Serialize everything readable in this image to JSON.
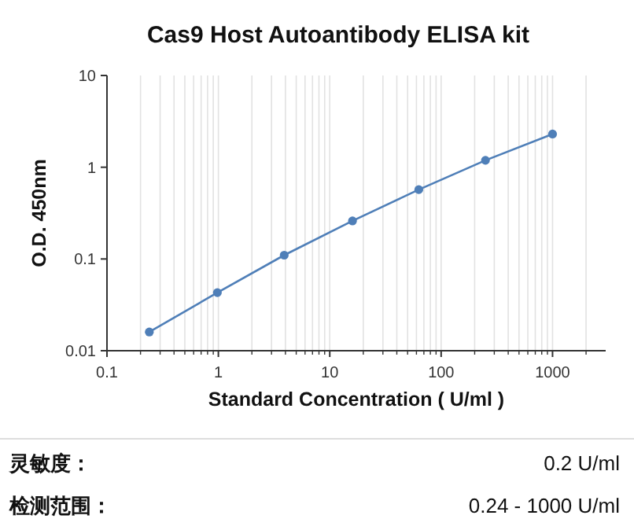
{
  "chart_data": {
    "type": "line",
    "title": "Cas9 Host Autoantibody ELISA kit",
    "xlabel": "Standard Concentration ( U/ml )",
    "ylabel": "O.D. 450nm",
    "x": [
      0.24,
      0.98,
      3.9,
      16,
      63,
      250,
      1000
    ],
    "series": [
      {
        "color": "#4f7fb8",
        "values": [
          0.016,
          0.043,
          0.11,
          0.26,
          0.57,
          1.19,
          2.3
        ]
      }
    ],
    "log": "xy",
    "xlim": [
      0.1,
      3000
    ],
    "ylim": [
      0.01,
      10
    ],
    "xticks": [
      0.1,
      1,
      10,
      100,
      1000
    ],
    "yticks": [
      0.01,
      0.1,
      1,
      10
    ],
    "grid": "x",
    "marker": "circle",
    "line_style": "solid",
    "annotations": [
      "灵敏度：",
      "0.2 U/ml",
      "检测范围：",
      "0.24 - 1000 U/ml"
    ]
  }
}
